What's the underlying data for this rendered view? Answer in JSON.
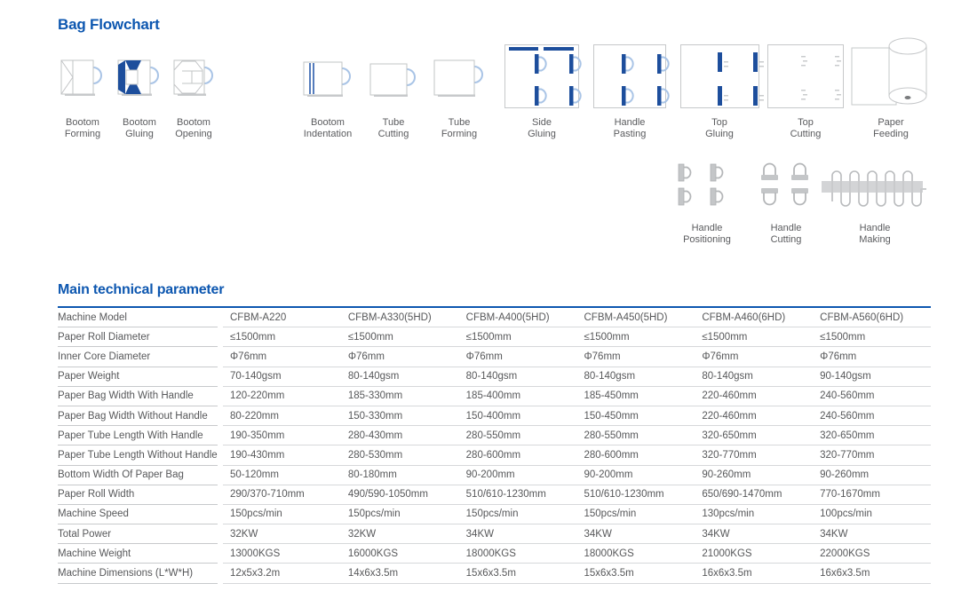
{
  "colors": {
    "accent_blue": "#0d57b0",
    "navy": "#1d4e9c",
    "light_blue": "#a9c4e6",
    "outline_gray": "#c6c8ca",
    "icon_gray": "#c4c6c8",
    "text_gray": "#58595b"
  },
  "flowchart": {
    "title": "Bag Flowchart",
    "steps": [
      {
        "label": "Bootom\nForming",
        "icon": "bag-bottom-forming-icon"
      },
      {
        "label": "Bootom\nGluing",
        "icon": "bag-bottom-gluing-icon"
      },
      {
        "label": "Bootom\nOpening",
        "icon": "bag-bottom-opening-icon"
      },
      {
        "label": "Bootom\nIndentation",
        "icon": "bag-bottom-indentation-icon"
      },
      {
        "label": "Tube\nCutting",
        "icon": "tube-cutting-icon"
      },
      {
        "label": "Tube\nForming",
        "icon": "tube-forming-icon"
      },
      {
        "label": "Side\nGluing",
        "icon": "side-gluing-icon"
      },
      {
        "label": "Handle\nPasting",
        "icon": "handle-pasting-icon"
      },
      {
        "label": "Top\nGluing",
        "icon": "top-gluing-icon"
      },
      {
        "label": "Top\nCutting",
        "icon": "top-cutting-icon"
      },
      {
        "label": "Paper\nFeeding",
        "icon": "paper-feeding-icon"
      },
      {
        "label": "Handle\nPositioning",
        "icon": "handle-positioning-icon"
      },
      {
        "label": "Handle\nCutting",
        "icon": "handle-cutting-icon"
      },
      {
        "label": "Handle\nMaking",
        "icon": "handle-making-icon"
      }
    ]
  },
  "table": {
    "title": "Main technical parameter",
    "rows": [
      {
        "label": "Machine Model",
        "values": [
          "CFBM-A220",
          "CFBM-A330(5HD)",
          "CFBM-A400(5HD)",
          "CFBM-A450(5HD)",
          "CFBM-A460(6HD)",
          "CFBM-A560(6HD)"
        ]
      },
      {
        "label": "Paper Roll Diameter",
        "values": [
          "≤1500mm",
          "≤1500mm",
          "≤1500mm",
          "≤1500mm",
          "≤1500mm",
          "≤1500mm"
        ]
      },
      {
        "label": "Inner Core Diameter",
        "values": [
          "Φ76mm",
          "Φ76mm",
          "Φ76mm",
          "Φ76mm",
          "Φ76mm",
          "Φ76mm"
        ]
      },
      {
        "label": "Paper Weight",
        "values": [
          "70-140gsm",
          "80-140gsm",
          "80-140gsm",
          "80-140gsm",
          "80-140gsm",
          "90-140gsm"
        ]
      },
      {
        "label": "Paper Bag Width With Handle",
        "values": [
          "120-220mm",
          "185-330mm",
          "185-400mm",
          "185-450mm",
          "220-460mm",
          "240-560mm"
        ]
      },
      {
        "label": "Paper Bag Width Without Handle",
        "values": [
          "80-220mm",
          "150-330mm",
          "150-400mm",
          "150-450mm",
          "220-460mm",
          "240-560mm"
        ]
      },
      {
        "label": "Paper Tube Length With Handle",
        "values": [
          "190-350mm",
          "280-430mm",
          "280-550mm",
          "280-550mm",
          "320-650mm",
          "320-650mm"
        ]
      },
      {
        "label": "Paper Tube Length Without Handle",
        "values": [
          "190-430mm",
          "280-530mm",
          "280-600mm",
          "280-600mm",
          "320-770mm",
          "320-770mm"
        ]
      },
      {
        "label": "Bottom Width Of Paper Bag",
        "values": [
          "50-120mm",
          "80-180mm",
          "90-200mm",
          "90-200mm",
          "90-260mm",
          "90-260mm"
        ]
      },
      {
        "label": "Paper Roll Width",
        "values": [
          "290/370-710mm",
          "490/590-1050mm",
          "510/610-1230mm",
          "510/610-1230mm",
          "650/690-1470mm",
          "770-1670mm"
        ]
      },
      {
        "label": "Machine Speed",
        "values": [
          "150pcs/min",
          "150pcs/min",
          "150pcs/min",
          "150pcs/min",
          "130pcs/min",
          "100pcs/min"
        ]
      },
      {
        "label": "Total Power",
        "values": [
          "32KW",
          "32KW",
          "34KW",
          "34KW",
          "34KW",
          "34KW"
        ]
      },
      {
        "label": "Machine Weight",
        "values": [
          "13000KGS",
          "16000KGS",
          "18000KGS",
          "18000KGS",
          "21000KGS",
          "22000KGS"
        ]
      },
      {
        "label": "Machine Dimensions (L*W*H)",
        "values": [
          "12x5x3.2m",
          "14x6x3.5m",
          "15x6x3.5m",
          "15x6x3.5m",
          "16x6x3.5m",
          "16x6x3.5m"
        ]
      }
    ]
  }
}
